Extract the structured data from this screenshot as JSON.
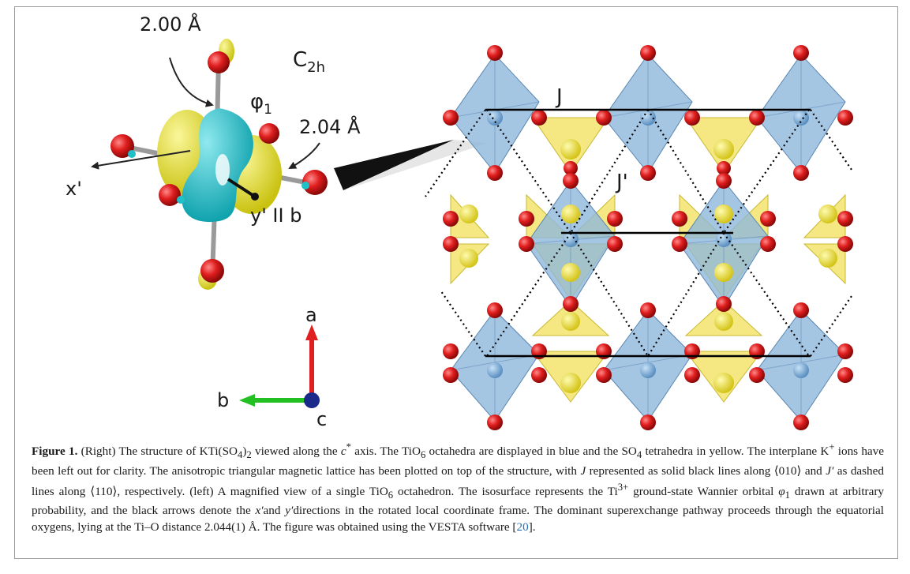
{
  "figure": {
    "labels": {
      "bond_top": "2.00 Å",
      "symmetry": "C",
      "symmetry_sub": "2h",
      "orbital": "φ",
      "orbital_sub": "1",
      "bond_eq": "2.04 Å",
      "axis_x": "x'",
      "axis_y": "y' II b",
      "lattice_j": "J",
      "lattice_jp": "J'",
      "axis_a": "a",
      "axis_b": "b",
      "axis_c": "c"
    },
    "colors": {
      "oxygen": "#d81b1b",
      "octahedra": "#8fb8dc",
      "tetrahedra": "#f1e05a",
      "orbital_pos": "#e8e41e",
      "orbital_neg": "#20c0c8",
      "axis_a": "#e02020",
      "axis_b": "#22c022",
      "axis_c": "#1a2a8a"
    }
  },
  "caption": {
    "fig_label": "Figure 1.",
    "s1": " (Right) The structure of KTi(SO",
    "s1_sub1": "4",
    "s1b": ")",
    "s1_sub2": "2",
    "s1c": " viewed along the ",
    "s1_c": "c",
    "s1_star": "*",
    "s1d": " axis. The TiO",
    "s1_sub3": "6",
    "s1e": " octahedra are displayed in blue and the SO",
    "s1_sub4": "4",
    "s1f": " tetrahedra in yellow. The interplane K",
    "s1_sup": "+",
    "s1g": " ions have been left out for clarity. The anisotropic triangular magnetic lattice has been plotted on top of the structure, with ",
    "s1_j": "J",
    "s1h": " represented as solid black lines along ⟨010⟩ and ",
    "s1_jp": "J′",
    "s1i": " as dashed lines along ⟨110⟩, respectively. (left) A magnified view of a single TiO",
    "s1_sub5": "6",
    "s1j": " octahedron. The isosurface represents the Ti",
    "s1_sup2": "3+",
    "s1k": " ground-state Wannier orbital ",
    "s1_phi": "φ",
    "s1_phisub": "1",
    "s1l": " drawn at arbitrary probability, and the black arrows denote the ",
    "s1_x": "x′",
    "s1m": "and ",
    "s1_y": "y′",
    "s1n": "directions in the rotated local coordinate frame. The dominant superexchange pathway proceeds through the equatorial oxygens, lying at the Ti–O distance 2.044(1) Å. The figure was obtained using the VESTA software [",
    "ref": "20",
    "s1o": "]."
  }
}
